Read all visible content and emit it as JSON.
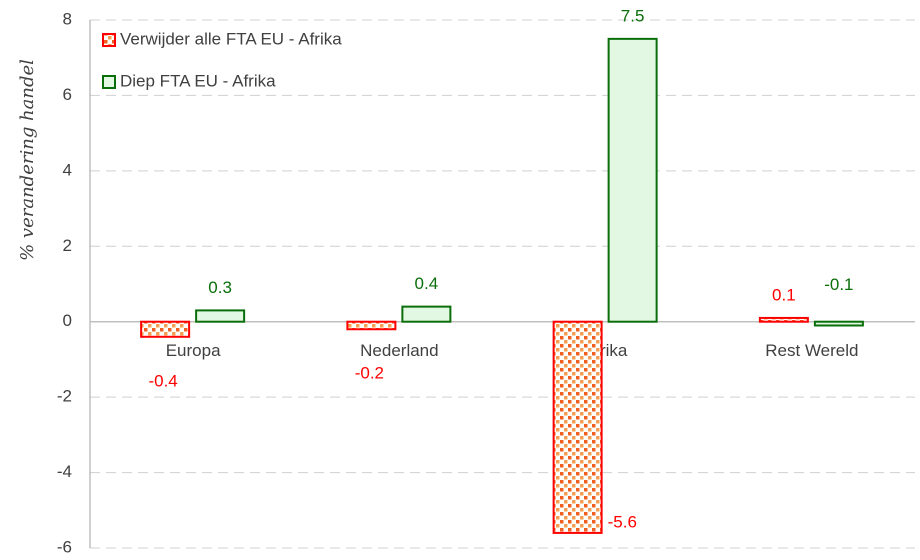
{
  "chart_data": {
    "type": "bar",
    "ylabel": "% verandering handel",
    "categories": [
      "Europa",
      "Nederland",
      "Afrika",
      "Rest Wereld"
    ],
    "series": [
      {
        "name": "Verwijder alle FTA EU - Afrika",
        "color": "#ff0000",
        "fill": "#f4a460",
        "pattern": "dots",
        "values": [
          -0.4,
          -0.2,
          -5.6,
          0.1
        ]
      },
      {
        "name": "Diep FTA EU - Afrika",
        "color": "#0a6e0a",
        "fill": "#e3f8e3",
        "values": [
          0.3,
          0.4,
          7.5,
          -0.1
        ]
      }
    ],
    "ylim": [
      -6,
      8
    ],
    "yticks": [
      -6,
      -4,
      -2,
      0,
      2,
      4,
      6,
      8
    ],
    "grid": true,
    "legend": "upper left"
  }
}
